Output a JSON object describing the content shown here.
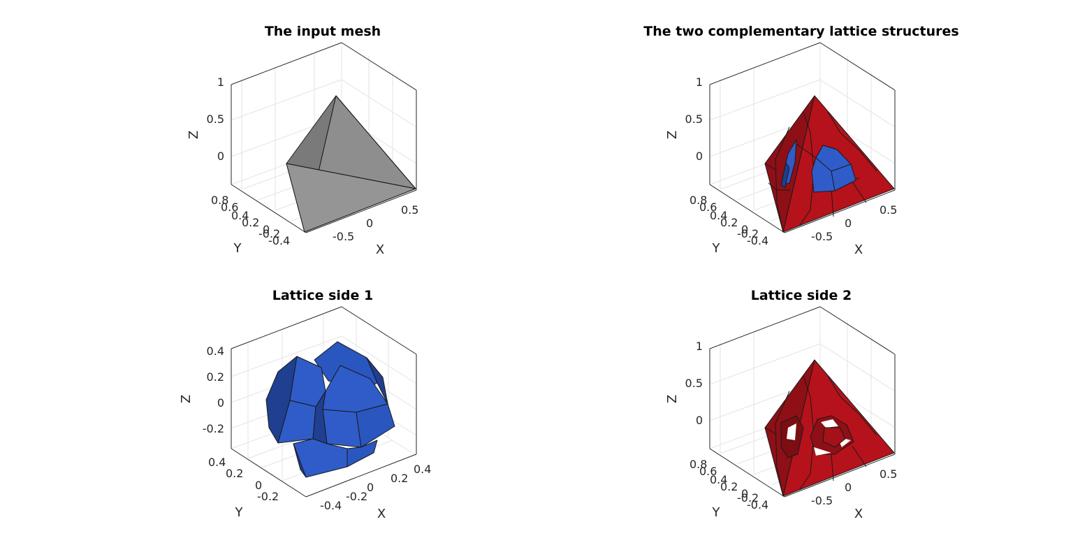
{
  "colors": {
    "background": "#ffffff",
    "gray_mesh": "#8c8c8c",
    "lattice_red": "#b5121b",
    "lattice_blue": "#2f5cc8",
    "edge": "#1a1a1a",
    "axis": "#262626",
    "grid": "#e3e3e3"
  },
  "panels": [
    {
      "title": "The input mesh",
      "xlabel": "X",
      "ylabel": "Y",
      "zlabel": "Z",
      "z_ticks": [
        "1",
        "0.5",
        "0"
      ],
      "y_ticks": [
        "0.8",
        "0.6",
        "0.4",
        "0.2",
        "0",
        "-0.2",
        "-0.4"
      ],
      "x_ticks": [
        "-0.5",
        "0",
        "0.5"
      ],
      "content": "gray tetrahedron"
    },
    {
      "title": "The two complementary lattice structures",
      "xlabel": "X",
      "ylabel": "Y",
      "zlabel": "Z",
      "z_ticks": [
        "1",
        "0.5",
        "0"
      ],
      "y_ticks": [
        "0.8",
        "0.6",
        "0.4",
        "0.2",
        "0",
        "-0.2",
        "-0.4"
      ],
      "x_ticks": [
        "-0.5",
        "0",
        "0.5"
      ],
      "content": "red and blue lattice tetrahedron"
    },
    {
      "title": "Lattice side 1",
      "xlabel": "X",
      "ylabel": "Y",
      "zlabel": "Z",
      "z_ticks": [
        "0.4",
        "0.2",
        "0",
        "-0.2"
      ],
      "y_ticks": [
        "0.4",
        "0.2",
        "0",
        "-0.2"
      ],
      "x_ticks": [
        "-0.4",
        "-0.2",
        "0",
        "0.2",
        "0.4"
      ],
      "content": "blue lattice blob"
    },
    {
      "title": "Lattice side 2",
      "xlabel": "X",
      "ylabel": "Y",
      "zlabel": "Z",
      "z_ticks": [
        "1",
        "0.5",
        "0"
      ],
      "y_ticks": [
        "0.8",
        "0.6",
        "0.4",
        "0.2",
        "0",
        "-0.2",
        "-0.4"
      ],
      "x_ticks": [
        "-0.5",
        "0",
        "0.5"
      ],
      "content": "red lattice with holes"
    }
  ]
}
